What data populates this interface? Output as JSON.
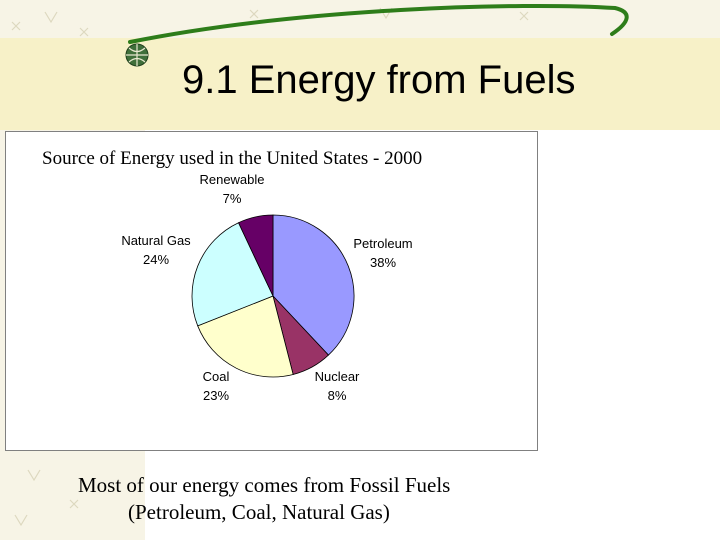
{
  "slide": {
    "title": "9.1 Energy from Fuels",
    "caption_line1": "Most of our energy comes from Fossil Fuels",
    "caption_line2": "(Petroleum, Coal, Natural Gas)"
  },
  "colors": {
    "background_texture": "#f7f4e6",
    "title_band": "#f7f1c8",
    "swoosh": "#2e7d1a"
  },
  "chart_data": {
    "type": "pie",
    "title": "Source of Energy used in the United States - 2000",
    "start_angle_deg": 0,
    "direction": "clockwise",
    "slices": [
      {
        "label": "Petroleum",
        "value": 38,
        "display": "38%",
        "color": "#9999ff"
      },
      {
        "label": "Nuclear",
        "value": 8,
        "display": "8%",
        "color": "#993366"
      },
      {
        "label": "Coal",
        "value": 23,
        "display": "23%",
        "color": "#ffffcc"
      },
      {
        "label": "Natural Gas",
        "value": 24,
        "display": "24%",
        "color": "#ccffff"
      },
      {
        "label": "Renewable",
        "value": 7,
        "display": "7%",
        "color": "#660066"
      }
    ]
  }
}
